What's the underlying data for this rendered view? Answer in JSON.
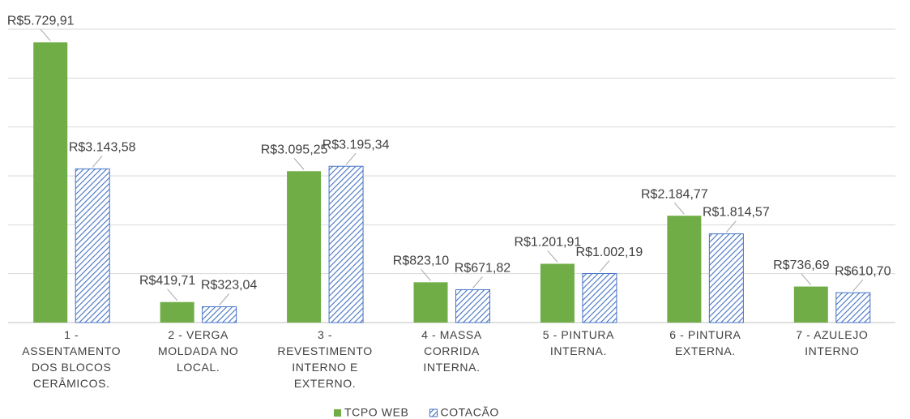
{
  "chart_data": {
    "type": "bar",
    "categories": [
      "1 - ASSENTAMENTO DOS BLOCOS CERÂMICOS.",
      "2 - VERGA MOLDADA NO LOCAL.",
      "3 - REVESTIMENTO INTERNO E EXTERNO.",
      "4 - MASSA CORRIDA INTERNA.",
      "5 - PINTURA INTERNA.",
      "6 - PINTURA EXTERNA.",
      "7 - AZULEJO INTERNO"
    ],
    "series": [
      {
        "name": "TCPO WEB",
        "color": "#70ad47",
        "hatch": false,
        "values": [
          5729.91,
          419.71,
          3095.25,
          823.1,
          1201.91,
          2184.77,
          736.69
        ],
        "value_labels": [
          "R$5.729,91",
          "R$419,71",
          "R$3.095,25",
          "R$823,10",
          "R$1.201,91",
          "R$2.184,77",
          "R$736,69"
        ]
      },
      {
        "name": "COTACÃO",
        "color": "#4472c4",
        "hatch": true,
        "values": [
          3143.58,
          323.04,
          3195.34,
          671.82,
          1002.19,
          1814.57,
          610.7
        ],
        "value_labels": [
          "R$3.143,58",
          "R$323,04",
          "R$3.195,34",
          "R$671,82",
          "R$1.002,19",
          "R$1.814,57",
          "R$610,70"
        ]
      }
    ],
    "ylim": [
      0,
      6000
    ],
    "yticks": [
      0,
      1000,
      2000,
      3000,
      4000,
      5000,
      6000
    ],
    "grid": true,
    "legend": "bottom"
  }
}
